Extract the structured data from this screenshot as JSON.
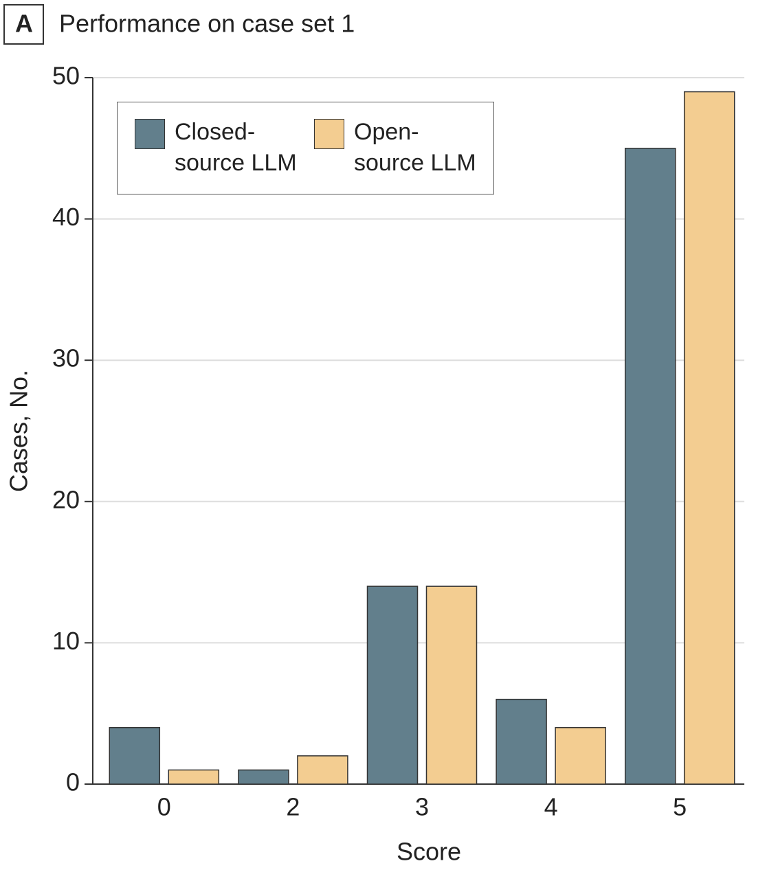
{
  "panel_label": "A",
  "chart_data": {
    "type": "bar",
    "title": "Performance on case set 1",
    "x_label": "Score",
    "y_label": "Cases, No.",
    "categories": [
      "0",
      "2",
      "3",
      "4",
      "5"
    ],
    "series": [
      {
        "name": "Closed-source LLM",
        "color": "#627f8c",
        "values": [
          4,
          1,
          14,
          6,
          45
        ]
      },
      {
        "name": "Open-source LLM",
        "color": "#f3cd91",
        "values": [
          1,
          2,
          14,
          4,
          49
        ]
      }
    ],
    "ylim": [
      0,
      50
    ],
    "yticks": [
      0,
      10,
      20,
      30,
      40,
      50
    ],
    "grid": true
  }
}
